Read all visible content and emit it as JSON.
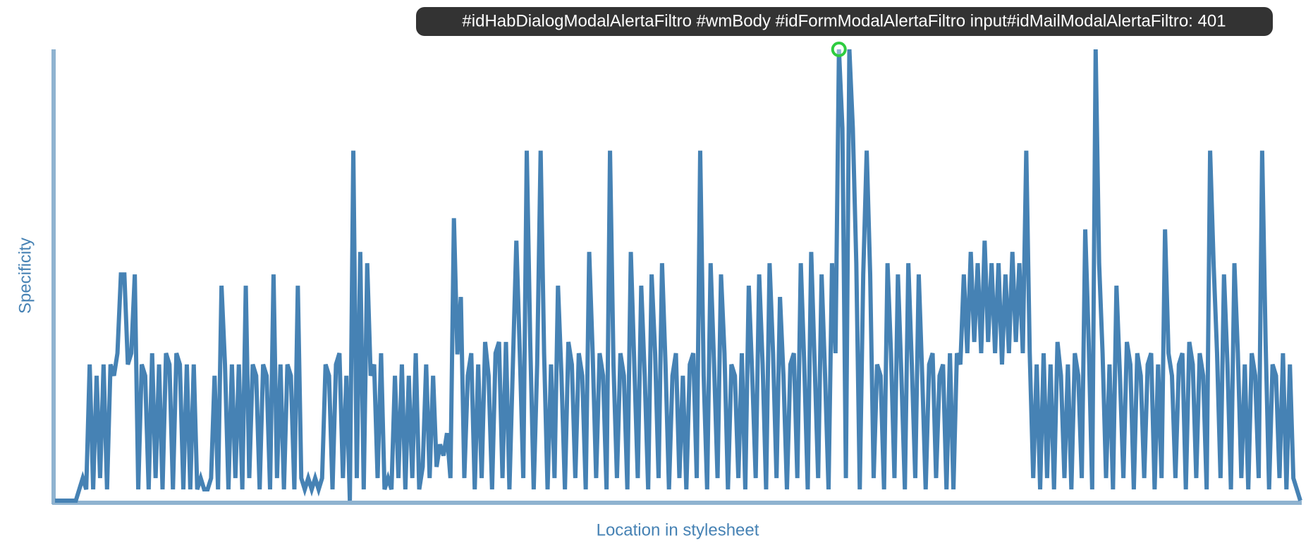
{
  "chart_data": {
    "type": "line",
    "ylabel": "Specificity",
    "xlabel": "Location in stylesheet",
    "color": "#4682b4",
    "ylim": [
      0,
      401
    ],
    "tooltip": {
      "text": "#idHabDialogModalAlertaFiltro #wmBody #idFormModalAlertaFiltro input#idMailModalAlertaFiltro: 401",
      "point": 226
    },
    "values": [
      0,
      0,
      0,
      0,
      0,
      0,
      0,
      10,
      20,
      10,
      121,
      10,
      111,
      20,
      121,
      10,
      121,
      111,
      131,
      201,
      201,
      121,
      131,
      201,
      10,
      121,
      111,
      10,
      131,
      20,
      121,
      10,
      131,
      121,
      10,
      131,
      121,
      10,
      121,
      10,
      121,
      10,
      20,
      10,
      10,
      20,
      111,
      10,
      191,
      121,
      10,
      121,
      20,
      121,
      10,
      191,
      20,
      121,
      111,
      10,
      121,
      111,
      10,
      201,
      20,
      121,
      10,
      121,
      111,
      10,
      191,
      20,
      10,
      20,
      10,
      20,
      10,
      20,
      121,
      111,
      10,
      121,
      131,
      20,
      111,
      0,
      311,
      20,
      221,
      10,
      211,
      111,
      121,
      20,
      131,
      10,
      20,
      10,
      111,
      20,
      121,
      10,
      111,
      20,
      131,
      10,
      30,
      121,
      20,
      111,
      30,
      50,
      40,
      60,
      20,
      251,
      130,
      181,
      20,
      111,
      131,
      10,
      121,
      20,
      141,
      111,
      10,
      131,
      141,
      20,
      141,
      10,
      121,
      231,
      131,
      20,
      311,
      141,
      10,
      121,
      311,
      131,
      10,
      121,
      20,
      191,
      111,
      10,
      141,
      121,
      20,
      131,
      111,
      10,
      221,
      131,
      20,
      131,
      111,
      10,
      311,
      121,
      20,
      131,
      111,
      10,
      221,
      121,
      20,
      191,
      111,
      10,
      201,
      131,
      20,
      211,
      121,
      10,
      111,
      131,
      20,
      111,
      10,
      121,
      131,
      20,
      311,
      111,
      10,
      211,
      121,
      20,
      201,
      131,
      10,
      121,
      111,
      20,
      131,
      10,
      191,
      111,
      20,
      201,
      121,
      10,
      211,
      131,
      20,
      181,
      111,
      10,
      121,
      131,
      20,
      211,
      121,
      10,
      221,
      121,
      20,
      201,
      111,
      10,
      211,
      131,
      401,
      331,
      20,
      401,
      331,
      211,
      10,
      201,
      311,
      201,
      20,
      121,
      111,
      10,
      211,
      131,
      20,
      201,
      111,
      10,
      211,
      121,
      20,
      201,
      111,
      10,
      121,
      131,
      20,
      111,
      121,
      10,
      131,
      10,
      131,
      121,
      201,
      131,
      221,
      141,
      211,
      131,
      231,
      141,
      211,
      131,
      211,
      121,
      201,
      131,
      221,
      141,
      211,
      131,
      311,
      131,
      20,
      121,
      10,
      131,
      20,
      121,
      10,
      141,
      111,
      20,
      121,
      10,
      131,
      111,
      20,
      241,
      141,
      10,
      401,
      211,
      131,
      20,
      121,
      10,
      191,
      111,
      20,
      141,
      121,
      10,
      131,
      111,
      20,
      121,
      131,
      10,
      121,
      20,
      241,
      131,
      111,
      20,
      121,
      131,
      10,
      141,
      121,
      20,
      131,
      111,
      10,
      311,
      211,
      131,
      20,
      201,
      121,
      10,
      211,
      131,
      20,
      121,
      10,
      131,
      111,
      20,
      311,
      141,
      10,
      121,
      111,
      20,
      131,
      10,
      121,
      20,
      10,
      0
    ]
  }
}
